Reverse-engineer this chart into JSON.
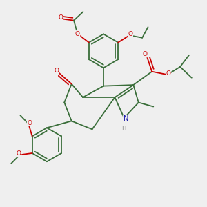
{
  "background_color": "#efefef",
  "bond_color": "#3a6e3a",
  "bond_width": 1.3,
  "atom_colors": {
    "O": "#cc0000",
    "N": "#1a1aaa",
    "C": "#3a6e3a",
    "H": "#888888"
  },
  "figsize": [
    3.0,
    3.0
  ],
  "dpi": 100,
  "scale": 1.0
}
